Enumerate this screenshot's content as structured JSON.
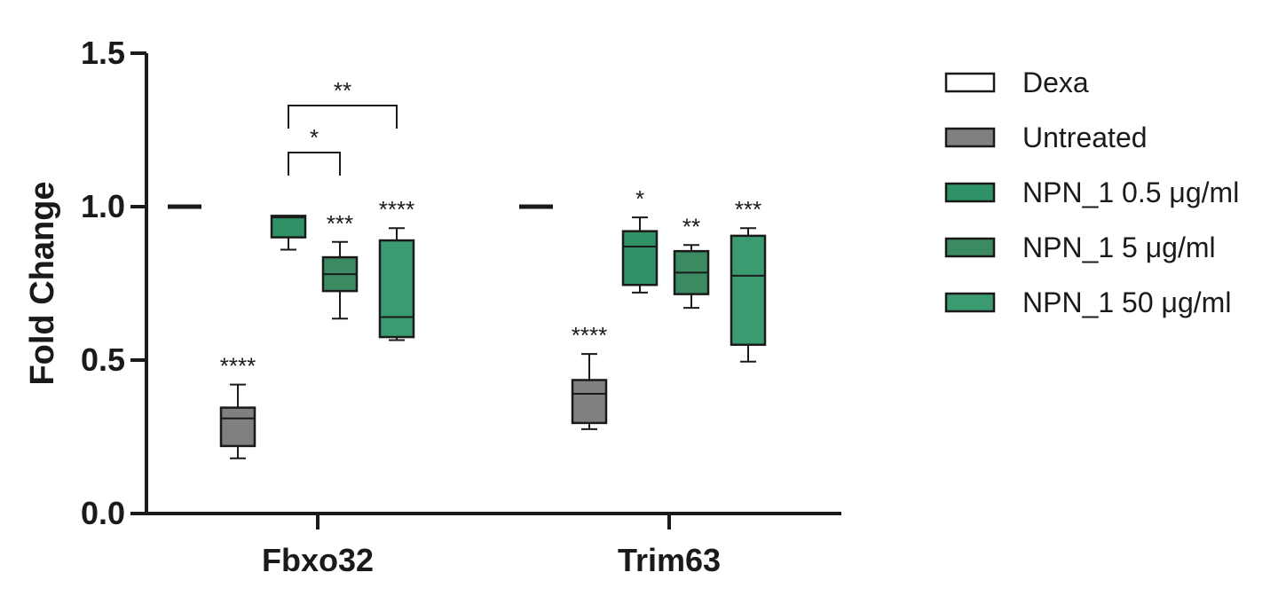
{
  "chart_data": {
    "type": "box",
    "ylabel": "Fold Change",
    "xlabel": "",
    "ylim": [
      0,
      1.5
    ],
    "yticks": [
      "0.0",
      "0.5",
      "1.0",
      "1.5"
    ],
    "categories": [
      "Fbxo32",
      "Trim63"
    ],
    "legend_position": "right",
    "series": [
      {
        "name": "Dexa",
        "color": "#ffffff",
        "boxes": [
          {
            "category": "Fbxo32",
            "min": 1.0,
            "q1": 1.0,
            "median": 1.0,
            "q3": 1.0,
            "max": 1.0,
            "significance": ""
          },
          {
            "category": "Trim63",
            "min": 1.0,
            "q1": 1.0,
            "median": 1.0,
            "q3": 1.0,
            "max": 1.0,
            "significance": ""
          }
        ]
      },
      {
        "name": "Untreated",
        "color": "#808080",
        "boxes": [
          {
            "category": "Fbxo32",
            "min": 0.18,
            "q1": 0.22,
            "median": 0.31,
            "q3": 0.345,
            "max": 0.42,
            "significance": "****"
          },
          {
            "category": "Trim63",
            "min": 0.275,
            "q1": 0.295,
            "median": 0.39,
            "q3": 0.435,
            "max": 0.52,
            "significance": "****"
          }
        ]
      },
      {
        "name": "NPN_1 0.5 μg/ml",
        "color": "#2e9266",
        "boxes": [
          {
            "category": "Fbxo32",
            "min": 0.86,
            "q1": 0.9,
            "median": 0.965,
            "q3": 0.97,
            "max": 0.97,
            "significance": ""
          },
          {
            "category": "Trim63",
            "min": 0.72,
            "q1": 0.745,
            "median": 0.87,
            "q3": 0.92,
            "max": 0.965,
            "significance": "*"
          }
        ]
      },
      {
        "name": "NPN_1 5 μg/ml",
        "color": "#3c8a62",
        "boxes": [
          {
            "category": "Fbxo32",
            "min": 0.635,
            "q1": 0.725,
            "median": 0.78,
            "q3": 0.835,
            "max": 0.885,
            "significance": "***"
          },
          {
            "category": "Trim63",
            "min": 0.67,
            "q1": 0.715,
            "median": 0.785,
            "q3": 0.855,
            "max": 0.875,
            "significance": "**"
          }
        ]
      },
      {
        "name": "NPN_1 50 μg/ml",
        "color": "#3a9a70",
        "boxes": [
          {
            "category": "Fbxo32",
            "min": 0.565,
            "q1": 0.575,
            "median": 0.64,
            "q3": 0.89,
            "max": 0.93,
            "significance": "****"
          },
          {
            "category": "Trim63",
            "min": 0.495,
            "q1": 0.55,
            "median": 0.775,
            "q3": 0.905,
            "max": 0.93,
            "significance": "***"
          }
        ]
      }
    ],
    "comparisons": [
      {
        "category": "Fbxo32",
        "from_series": 2,
        "to_series": 4,
        "label": "**"
      },
      {
        "category": "Fbxo32",
        "from_series": 2,
        "to_series": 3,
        "label": "*"
      }
    ]
  }
}
